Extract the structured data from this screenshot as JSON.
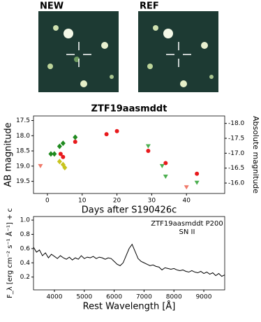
{
  "stamps": [
    {
      "label": "NEW"
    },
    {
      "label": "REF"
    }
  ],
  "chart_data": [
    {
      "type": "scatter",
      "title": "ZTF19aasmddt",
      "xlabel": "Days after S190426c",
      "ylabel": "AB magnitude",
      "y2label": "Absolute magnitude",
      "xlim": [
        -4,
        51
      ],
      "xticks": [
        0,
        10,
        20,
        30,
        40
      ],
      "ylim": [
        19.9,
        17.35
      ],
      "yticks": [
        17.5,
        {
          "value": 18,
          "label": "18.0"
        },
        18.5,
        {
          "value": 19,
          "label": "19.0"
        },
        19.5
      ],
      "y2lim": [
        -15.65,
        -18.25
      ],
      "y2ticks": [
        {
          "value": -18,
          "label": "-18.0"
        },
        -17.5,
        {
          "value": -17,
          "label": "-17.0"
        },
        -16.5,
        {
          "value": -16,
          "label": "-16.0"
        }
      ],
      "series": [
        {
          "color": "#e8191c",
          "marker": "circle",
          "x": [
            3.8,
            4.5,
            8,
            17,
            20,
            29,
            34,
            43
          ],
          "values": [
            18.6,
            18.7,
            18.2,
            17.95,
            17.85,
            18.5,
            18.9,
            19.25
          ]
        },
        {
          "color": "#1f8a1f",
          "marker": "diamond",
          "x": [
            1,
            2,
            3.5,
            4.5,
            8
          ],
          "values": [
            18.6,
            18.6,
            18.35,
            18.25,
            18.05
          ]
        },
        {
          "color": "#c8c41e",
          "marker": "diamond",
          "x": [
            3.5,
            4.5,
            5
          ],
          "values": [
            18.85,
            18.95,
            19.05
          ]
        },
        {
          "color": "#4caf50",
          "marker": "triangle",
          "x": [
            29,
            33,
            34,
            43
          ],
          "values": [
            18.35,
            19.0,
            19.35,
            19.55
          ]
        },
        {
          "color": "#f07a6a",
          "marker": "triangle",
          "x": [
            -2,
            40
          ],
          "values": [
            19.0,
            19.7
          ]
        }
      ]
    },
    {
      "type": "line",
      "xlabel": "Rest Wavelength [Å]",
      "ylabel": "F_λ [erg cm⁻² s⁻¹ Å⁻¹] + c",
      "annotations": [
        "ZTF19aasmddt P200",
        "SN II"
      ],
      "xlim": [
        3300,
        9700
      ],
      "xticks": [
        4000,
        5000,
        6000,
        7000,
        8000,
        9000
      ],
      "ylim": [
        0.02,
        1.05
      ],
      "yticks": [
        0.2,
        0.4,
        0.6,
        0.8,
        {
          "value": 1,
          "label": "1.0"
        }
      ],
      "color": "#000000",
      "x": [
        3300,
        3400,
        3500,
        3600,
        3700,
        3800,
        3900,
        4000,
        4100,
        4200,
        4300,
        4400,
        4500,
        4600,
        4700,
        4800,
        4900,
        5000,
        5100,
        5200,
        5300,
        5400,
        5500,
        5600,
        5700,
        5800,
        5900,
        6000,
        6100,
        6200,
        6300,
        6400,
        6500,
        6600,
        6700,
        6800,
        6900,
        7000,
        7100,
        7200,
        7300,
        7400,
        7500,
        7600,
        7700,
        7800,
        7900,
        8000,
        8100,
        8200,
        8300,
        8400,
        8500,
        8600,
        8700,
        8800,
        8900,
        9000,
        9100,
        9200,
        9300,
        9400,
        9500,
        9600,
        9700
      ],
      "values": [
        0.62,
        0.55,
        0.58,
        0.5,
        0.54,
        0.47,
        0.52,
        0.49,
        0.46,
        0.5,
        0.47,
        0.45,
        0.48,
        0.44,
        0.47,
        0.45,
        0.5,
        0.46,
        0.48,
        0.47,
        0.49,
        0.46,
        0.48,
        0.47,
        0.45,
        0.47,
        0.46,
        0.42,
        0.38,
        0.36,
        0.4,
        0.5,
        0.6,
        0.66,
        0.56,
        0.46,
        0.42,
        0.4,
        0.38,
        0.36,
        0.37,
        0.35,
        0.34,
        0.3,
        0.33,
        0.32,
        0.31,
        0.32,
        0.3,
        0.29,
        0.3,
        0.28,
        0.27,
        0.29,
        0.27,
        0.26,
        0.28,
        0.25,
        0.27,
        0.24,
        0.26,
        0.22,
        0.25,
        0.21,
        0.23
      ]
    }
  ]
}
